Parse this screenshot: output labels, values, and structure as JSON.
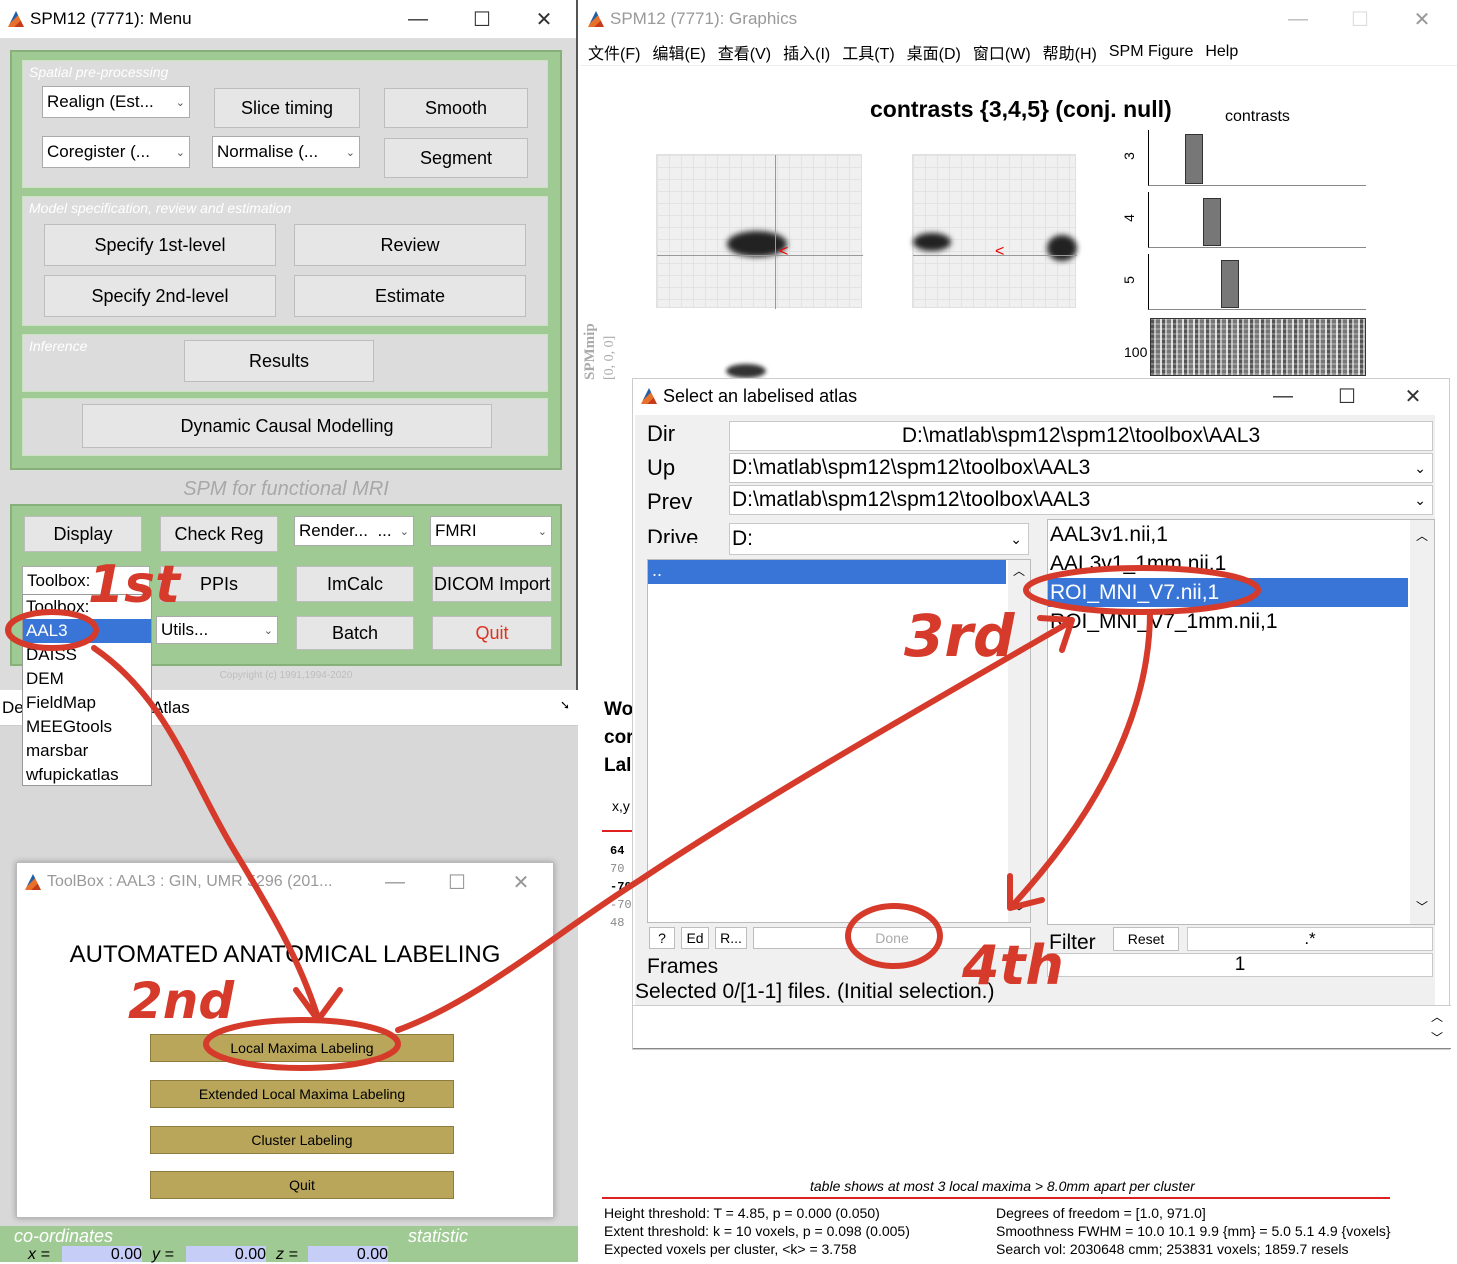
{
  "menu": {
    "title": "SPM12 (7771): Menu",
    "preproc": {
      "label": "Spatial pre-processing",
      "realign": "Realign (Est...",
      "coregister": "Coregister (...",
      "slice_timing": "Slice timing",
      "normalise": "Normalise (...",
      "smooth": "Smooth",
      "segment": "Segment"
    },
    "model": {
      "label": "Model specification, review and estimation",
      "specify1": "Specify 1st-level",
      "review": "Review",
      "specify2": "Specify 2nd-level",
      "estimate": "Estimate"
    },
    "inference": {
      "label": "Inference",
      "results": "Results"
    },
    "dcm": "Dynamic Causal Modelling",
    "spm_fmri": "SPM for functional MRI",
    "tools": {
      "display": "Display",
      "check_reg": "Check Reg",
      "render": "Render...",
      "render_extra": "...",
      "fmri": "FMRI",
      "toolbox": "Toolbox:",
      "ppis": "PPIs",
      "imcalc": "ImCalc",
      "dicom": "DICOM Import",
      "utils": "Utils...",
      "batch": "Batch",
      "quit": "Quit"
    },
    "copyright": "Copyright (c) 1991,1994-2020",
    "toolbox_list": [
      "Toolbox:",
      "AAL3",
      "DAISS",
      "DEM",
      "FieldMap",
      "MEEGtools",
      "marsbar",
      "wfupickatlas"
    ],
    "selected_toolbox": "AAL3",
    "behind_de": "De",
    "behind_atlas": "Atlas"
  },
  "aal": {
    "title": "ToolBox : AAL3 : GIN, UMR 5296 (201...",
    "heading": "AUTOMATED ANATOMICAL LABELING",
    "buttons": [
      "Local Maxima Labeling",
      "Extended Local Maxima Labeling",
      "Cluster Labeling",
      "Quit"
    ]
  },
  "coords": {
    "label": "co-ordinates",
    "statistic": "statistic",
    "x": "0.00",
    "y": "0.00",
    "z": "0.00"
  },
  "graphics": {
    "title": "SPM12 (7771): Graphics",
    "menus": [
      "文件(F)",
      "编辑(E)",
      "查看(V)",
      "插入(I)",
      "工具(T)",
      "桌面(D)",
      "窗口(W)",
      "帮助(H)",
      "SPM Figure",
      "Help"
    ],
    "heading": "contrasts {3,4,5} (conj. null)",
    "contrasts_label": "contrasts",
    "contrast_rows": [
      "3",
      "4",
      "5"
    ],
    "matrix_label": "100",
    "mip_label": "SPMmip",
    "mip_coords": "[0, 0, 0]",
    "left_partial": [
      "Wo",
      "cor",
      "Lal"
    ],
    "xy_label": "x,y",
    "table_vals": [
      "64",
      "70",
      "-70",
      "-70",
      "48"
    ],
    "footer_note": "table shows at most 3 local maxima > 8.0mm apart per cluster",
    "footer_left": [
      "Height threshold: T = 4.85, p = 0.000 (0.050)",
      "Extent threshold: k = 10 voxels, p = 0.098 (0.005)",
      "Expected voxels per cluster, <k> = 3.758"
    ],
    "footer_right": [
      "Degrees of freedom = [1.0, 971.0]",
      "Smoothness FWHM = 10.0 10.1 9.9 {mm}  = 5.0 5.1 4.9 {voxels}",
      "Search vol: 2030648 cmm; 253831 voxels; 1859.7 resels"
    ]
  },
  "selector": {
    "title": "Select an labelised atlas",
    "dir_label": "Dir",
    "dir_value": "D:\\matlab\\spm12\\spm12\\toolbox\\AAL3",
    "up_label": "Up",
    "up_value": "D:\\matlab\\spm12\\spm12\\toolbox\\AAL3",
    "prev_label": "Prev",
    "prev_value": "D:\\matlab\\spm12\\spm12\\toolbox\\AAL3",
    "drive_label": "Drive",
    "drive_value": "D:",
    "dirs": [
      ".."
    ],
    "files": [
      "AAL3v1.nii,1",
      "AAL3v1_1mm.nii,1",
      "ROI_MNI_V7.nii,1",
      "ROI_MNI_V7_1mm.nii,1"
    ],
    "selected_file": "ROI_MNI_V7.nii,1",
    "btn_help": "?",
    "btn_ed": "Ed",
    "btn_r": "R...",
    "btn_done": "Done",
    "filter_label": "Filter",
    "reset": "Reset",
    "filter_value": ".*",
    "frames_label": "Frames",
    "frames_value": "1",
    "status": "Selected 0/[1-1] files. (Initial selection.)"
  },
  "annotations": {
    "first": "1st",
    "second": "2nd",
    "third": "3rd",
    "fourth": "4th"
  },
  "colors": {
    "panel_green": "#9fca93",
    "button_gold": "#b9a65a",
    "selection_blue": "#3875d7",
    "annotation_red": "#d63a2a"
  }
}
